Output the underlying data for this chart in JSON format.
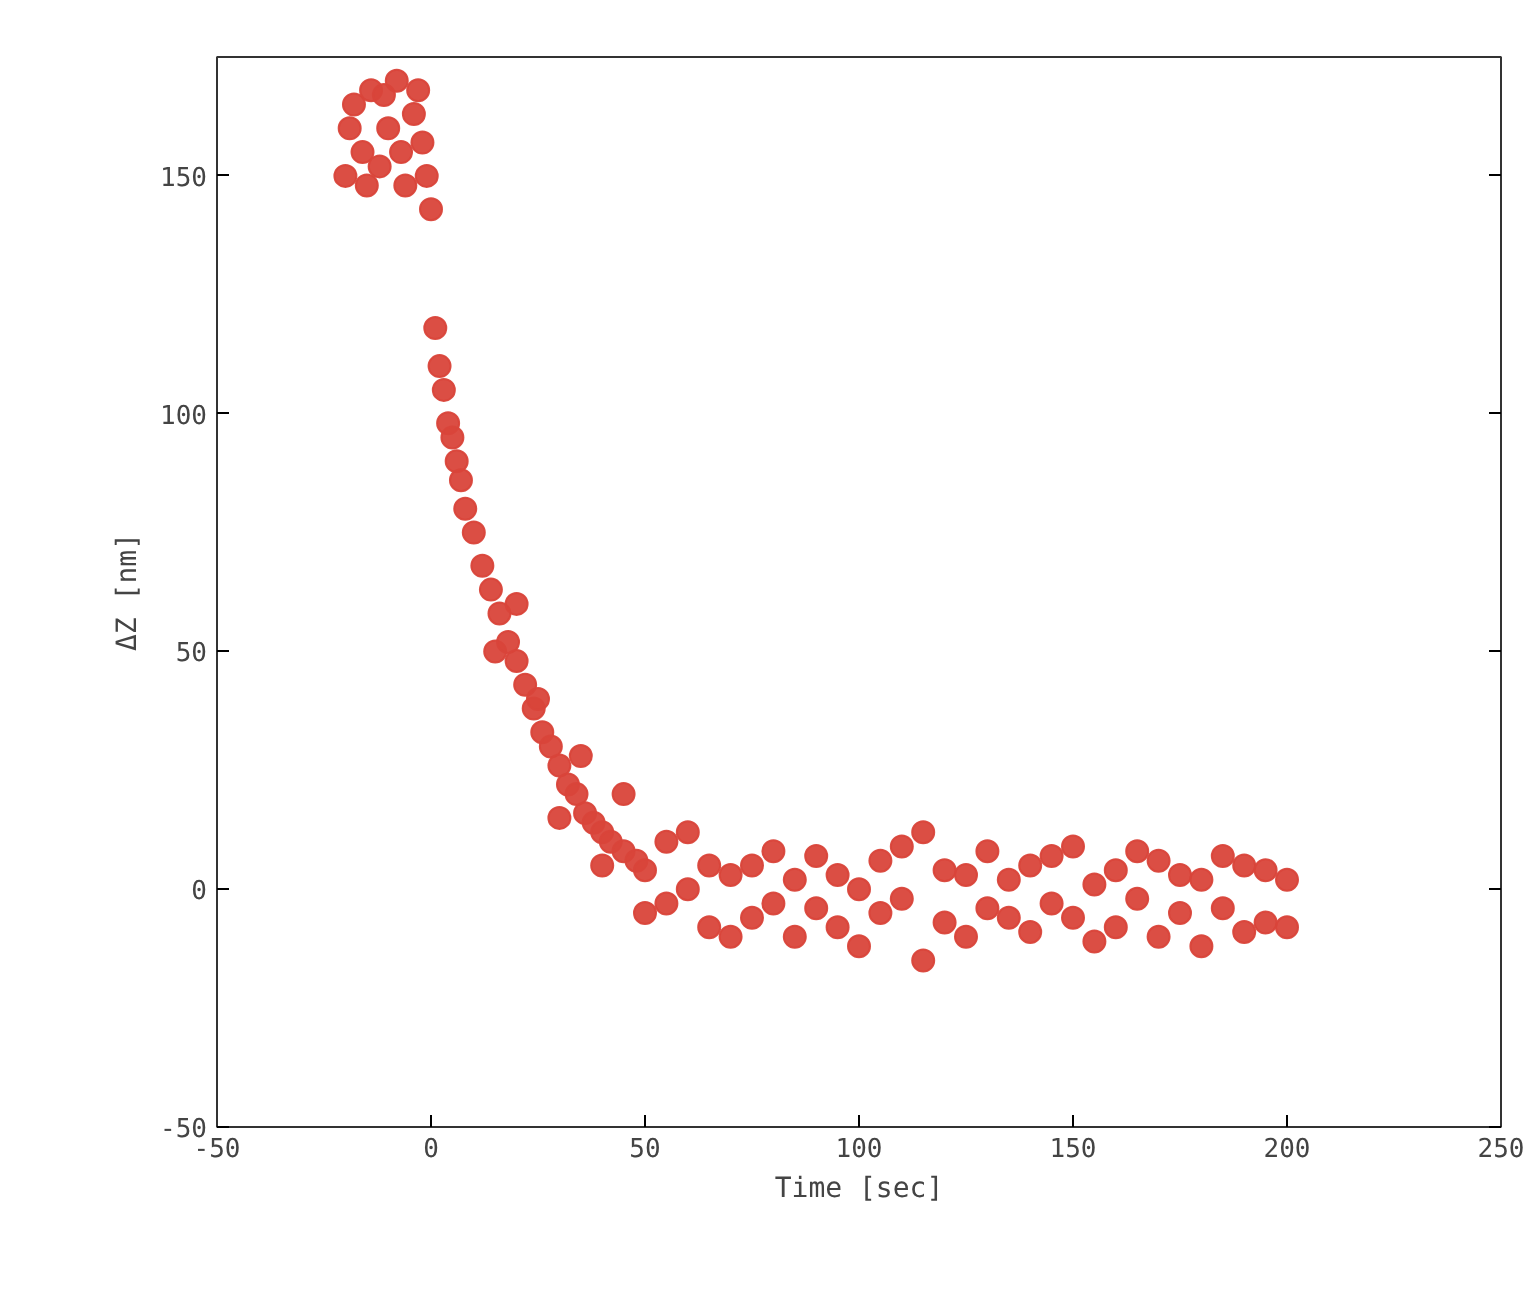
{
  "chart_data": {
    "type": "scatter",
    "xlabel": "Time [sec]",
    "ylabel": "ΔZ [nm]",
    "marker": "circle",
    "grid": false,
    "xlim": [
      -50,
      250
    ],
    "xticks": [
      -50,
      0,
      50,
      100,
      150,
      200,
      250
    ],
    "ylim": [
      -50,
      175
    ],
    "yticks": [
      -50,
      0,
      50,
      100,
      150
    ],
    "series": [
      {
        "color": "#d9453a",
        "x": [
          -20,
          -19,
          -18,
          -16,
          -15,
          -14,
          -12,
          -11,
          -10,
          -8,
          -7,
          -6,
          -4,
          -3,
          -2,
          -1,
          0,
          1,
          2,
          3,
          4,
          5,
          6,
          7,
          8,
          10,
          12,
          14,
          15,
          16,
          18,
          20,
          20,
          22,
          24,
          25,
          26,
          28,
          30,
          30,
          32,
          34,
          35,
          36,
          38,
          40,
          40,
          42,
          45,
          45,
          48,
          50,
          50,
          55,
          55,
          60,
          60,
          65,
          65,
          70,
          70,
          75,
          75,
          80,
          80,
          85,
          85,
          90,
          90,
          95,
          95,
          100,
          100,
          105,
          105,
          110,
          110,
          115,
          115,
          120,
          120,
          125,
          125,
          130,
          130,
          135,
          135,
          140,
          140,
          145,
          145,
          150,
          150,
          155,
          155,
          160,
          160,
          165,
          165,
          170,
          170,
          175,
          175,
          180,
          180,
          185,
          185,
          190,
          190,
          195,
          195,
          200,
          200
        ],
        "values": [
          150,
          160,
          165,
          155,
          148,
          168,
          152,
          167,
          160,
          170,
          155,
          148,
          163,
          168,
          157,
          150,
          143,
          118,
          110,
          105,
          98,
          95,
          90,
          86,
          80,
          75,
          68,
          63,
          50,
          58,
          52,
          48,
          60,
          43,
          38,
          40,
          33,
          30,
          26,
          15,
          22,
          20,
          28,
          16,
          14,
          12,
          5,
          10,
          8,
          20,
          6,
          4,
          -5,
          10,
          -3,
          0,
          12,
          -8,
          5,
          -10,
          3,
          5,
          -6,
          -3,
          8,
          2,
          -10,
          7,
          -4,
          -8,
          3,
          0,
          -12,
          6,
          -5,
          -2,
          9,
          12,
          -15,
          -7,
          4,
          3,
          -10,
          8,
          -4,
          -6,
          2,
          5,
          -9,
          -3,
          7,
          9,
          -6,
          -11,
          1,
          4,
          -8,
          -2,
          8,
          6,
          -10,
          -5,
          3,
          2,
          -12,
          7,
          -4,
          -9,
          5,
          4,
          -7,
          2,
          -8
        ]
      }
    ]
  }
}
